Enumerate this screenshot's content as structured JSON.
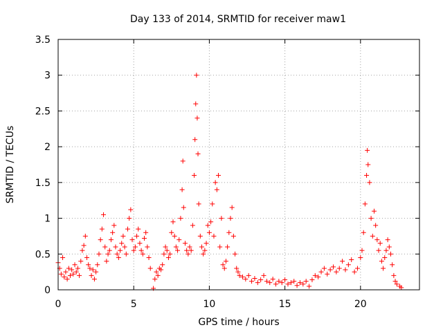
{
  "chart_data": {
    "type": "scatter",
    "title": "Day 133 of 2014, SRMTID for receiver maw1",
    "xlabel": "GPS time / hours",
    "ylabel": "SRMTID / TECUs",
    "xlim": [
      0,
      23.9
    ],
    "ylim": [
      0,
      3.5
    ],
    "xticks": [
      0,
      5,
      10,
      15,
      20
    ],
    "xtick_labels": [
      "0",
      "5",
      "10",
      "15",
      "20"
    ],
    "yticks": [
      0,
      0.5,
      1,
      1.5,
      2,
      2.5,
      3,
      3.5
    ],
    "ytick_labels": [
      "0",
      "0.5",
      "1",
      "1.5",
      "2",
      "2.5",
      "3",
      "3.5"
    ],
    "grid": true,
    "marker": "+",
    "marker_color": "#ff0000",
    "series": [
      {
        "name": "maw1",
        "points": [
          [
            0.0,
            0.38
          ],
          [
            0.1,
            0.3
          ],
          [
            0.2,
            0.22
          ],
          [
            0.3,
            0.45
          ],
          [
            0.4,
            0.18
          ],
          [
            0.5,
            0.25
          ],
          [
            0.6,
            0.15
          ],
          [
            0.7,
            0.3
          ],
          [
            0.8,
            0.2
          ],
          [
            0.9,
            0.28
          ],
          [
            1.0,
            0.22
          ],
          [
            1.1,
            0.35
          ],
          [
            1.2,
            0.25
          ],
          [
            1.3,
            0.3
          ],
          [
            1.4,
            0.2
          ],
          [
            1.5,
            0.4
          ],
          [
            1.6,
            0.55
          ],
          [
            1.7,
            0.62
          ],
          [
            1.8,
            0.75
          ],
          [
            1.9,
            0.45
          ],
          [
            2.0,
            0.35
          ],
          [
            2.1,
            0.3
          ],
          [
            2.2,
            0.2
          ],
          [
            2.3,
            0.28
          ],
          [
            2.4,
            0.15
          ],
          [
            2.5,
            0.25
          ],
          [
            2.6,
            0.35
          ],
          [
            2.7,
            0.5
          ],
          [
            2.8,
            0.7
          ],
          [
            2.9,
            0.85
          ],
          [
            3.0,
            1.05
          ],
          [
            3.1,
            0.6
          ],
          [
            3.2,
            0.4
          ],
          [
            3.3,
            0.5
          ],
          [
            3.4,
            0.55
          ],
          [
            3.5,
            0.7
          ],
          [
            3.6,
            0.8
          ],
          [
            3.7,
            0.9
          ],
          [
            3.8,
            0.6
          ],
          [
            3.9,
            0.5
          ],
          [
            4.0,
            0.45
          ],
          [
            4.1,
            0.55
          ],
          [
            4.2,
            0.65
          ],
          [
            4.3,
            0.75
          ],
          [
            4.4,
            0.6
          ],
          [
            4.5,
            0.5
          ],
          [
            4.6,
            0.85
          ],
          [
            4.7,
            1.0
          ],
          [
            4.8,
            1.12
          ],
          [
            4.9,
            0.7
          ],
          [
            5.0,
            0.55
          ],
          [
            5.1,
            0.6
          ],
          [
            5.2,
            0.75
          ],
          [
            5.3,
            0.85
          ],
          [
            5.4,
            0.65
          ],
          [
            5.5,
            0.55
          ],
          [
            5.6,
            0.5
          ],
          [
            5.7,
            0.72
          ],
          [
            5.8,
            0.8
          ],
          [
            5.9,
            0.6
          ],
          [
            6.0,
            0.45
          ],
          [
            6.1,
            0.3
          ],
          [
            6.3,
            0.02
          ],
          [
            6.4,
            0.15
          ],
          [
            6.5,
            0.25
          ],
          [
            6.6,
            0.2
          ],
          [
            6.7,
            0.3
          ],
          [
            6.8,
            0.28
          ],
          [
            6.9,
            0.35
          ],
          [
            7.0,
            0.5
          ],
          [
            7.1,
            0.6
          ],
          [
            7.2,
            0.55
          ],
          [
            7.3,
            0.45
          ],
          [
            7.4,
            0.5
          ],
          [
            7.5,
            0.8
          ],
          [
            7.6,
            0.95
          ],
          [
            7.7,
            0.75
          ],
          [
            7.8,
            0.6
          ],
          [
            7.9,
            0.55
          ],
          [
            8.0,
            0.7
          ],
          [
            8.1,
            1.0
          ],
          [
            8.2,
            1.4
          ],
          [
            8.25,
            1.8
          ],
          [
            8.3,
            1.15
          ],
          [
            8.4,
            0.65
          ],
          [
            8.5,
            0.55
          ],
          [
            8.6,
            0.5
          ],
          [
            8.7,
            0.6
          ],
          [
            8.8,
            0.55
          ],
          [
            8.9,
            0.9
          ],
          [
            9.0,
            1.6
          ],
          [
            9.05,
            2.1
          ],
          [
            9.1,
            2.6
          ],
          [
            9.15,
            3.0
          ],
          [
            9.2,
            2.4
          ],
          [
            9.25,
            1.9
          ],
          [
            9.3,
            1.2
          ],
          [
            9.4,
            0.75
          ],
          [
            9.5,
            0.6
          ],
          [
            9.6,
            0.5
          ],
          [
            9.7,
            0.55
          ],
          [
            9.8,
            0.65
          ],
          [
            9.9,
            0.9
          ],
          [
            10.0,
            0.8
          ],
          [
            10.1,
            0.95
          ],
          [
            10.2,
            1.2
          ],
          [
            10.3,
            0.75
          ],
          [
            10.4,
            1.5
          ],
          [
            10.5,
            1.4
          ],
          [
            10.6,
            1.6
          ],
          [
            10.7,
            0.6
          ],
          [
            10.8,
            1.0
          ],
          [
            10.9,
            0.35
          ],
          [
            11.0,
            0.3
          ],
          [
            11.1,
            0.4
          ],
          [
            11.2,
            0.6
          ],
          [
            11.3,
            0.8
          ],
          [
            11.4,
            1.0
          ],
          [
            11.5,
            1.15
          ],
          [
            11.6,
            0.75
          ],
          [
            11.7,
            0.5
          ],
          [
            11.8,
            0.3
          ],
          [
            11.9,
            0.25
          ],
          [
            12.0,
            0.2
          ],
          [
            12.2,
            0.18
          ],
          [
            12.4,
            0.15
          ],
          [
            12.6,
            0.2
          ],
          [
            12.8,
            0.12
          ],
          [
            13.0,
            0.16
          ],
          [
            13.2,
            0.1
          ],
          [
            13.4,
            0.14
          ],
          [
            13.6,
            0.2
          ],
          [
            13.8,
            0.12
          ],
          [
            14.0,
            0.1
          ],
          [
            14.2,
            0.15
          ],
          [
            14.4,
            0.08
          ],
          [
            14.6,
            0.12
          ],
          [
            14.8,
            0.1
          ],
          [
            15.0,
            0.14
          ],
          [
            15.2,
            0.08
          ],
          [
            15.4,
            0.1
          ],
          [
            15.6,
            0.12
          ],
          [
            15.8,
            0.06
          ],
          [
            16.0,
            0.1
          ],
          [
            16.2,
            0.08
          ],
          [
            16.4,
            0.12
          ],
          [
            16.6,
            0.05
          ],
          [
            16.8,
            0.14
          ],
          [
            17.0,
            0.2
          ],
          [
            17.2,
            0.18
          ],
          [
            17.4,
            0.25
          ],
          [
            17.6,
            0.3
          ],
          [
            17.8,
            0.22
          ],
          [
            18.0,
            0.28
          ],
          [
            18.2,
            0.32
          ],
          [
            18.4,
            0.25
          ],
          [
            18.6,
            0.3
          ],
          [
            18.8,
            0.4
          ],
          [
            19.0,
            0.28
          ],
          [
            19.2,
            0.35
          ],
          [
            19.4,
            0.42
          ],
          [
            19.6,
            0.25
          ],
          [
            19.8,
            0.3
          ],
          [
            20.0,
            0.45
          ],
          [
            20.1,
            0.55
          ],
          [
            20.2,
            0.8
          ],
          [
            20.3,
            1.2
          ],
          [
            20.4,
            1.6
          ],
          [
            20.45,
            1.95
          ],
          [
            20.5,
            1.75
          ],
          [
            20.6,
            1.5
          ],
          [
            20.7,
            1.0
          ],
          [
            20.8,
            0.75
          ],
          [
            20.9,
            1.1
          ],
          [
            21.0,
            0.9
          ],
          [
            21.1,
            0.7
          ],
          [
            21.2,
            0.55
          ],
          [
            21.3,
            0.65
          ],
          [
            21.4,
            0.4
          ],
          [
            21.5,
            0.3
          ],
          [
            21.6,
            0.45
          ],
          [
            21.7,
            0.55
          ],
          [
            21.8,
            0.7
          ],
          [
            21.9,
            0.6
          ],
          [
            22.0,
            0.5
          ],
          [
            22.1,
            0.35
          ],
          [
            22.2,
            0.2
          ],
          [
            22.3,
            0.12
          ],
          [
            22.4,
            0.08
          ],
          [
            22.6,
            0.05
          ],
          [
            22.7,
            0.03
          ]
        ]
      }
    ]
  }
}
